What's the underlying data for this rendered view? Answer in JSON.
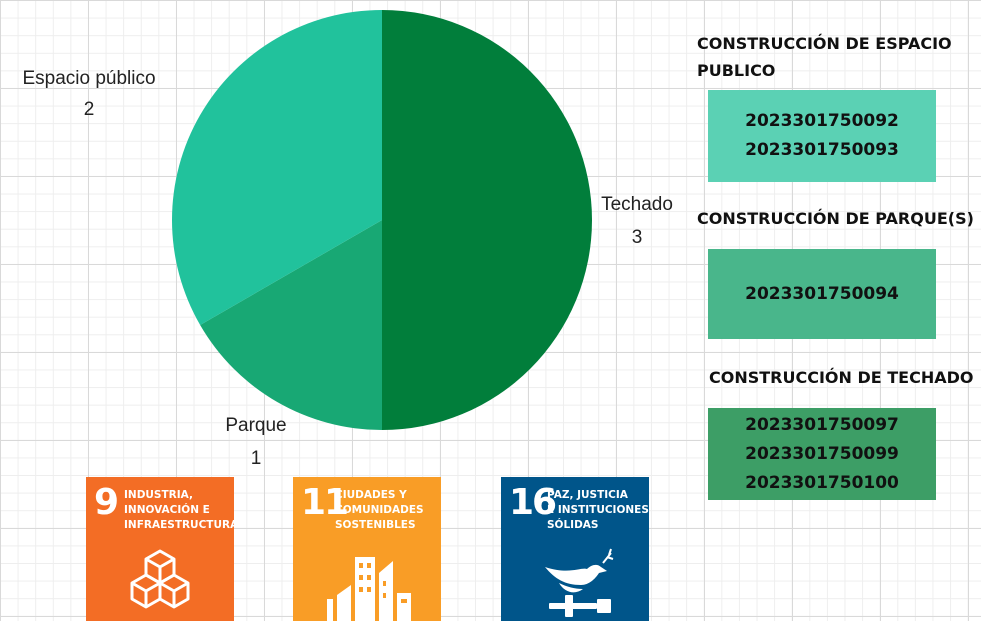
{
  "chart_data": {
    "type": "pie",
    "slices": [
      {
        "label": "Techado",
        "value": 3,
        "color": "#017e3b"
      },
      {
        "label": "Parque",
        "value": 1,
        "color": "#18a874"
      },
      {
        "label": "Espacio público",
        "value": 2,
        "color": "#21c29c"
      }
    ]
  },
  "groups": [
    {
      "title_line1": "CONSTRUCCIÓN DE ESPACIO",
      "title_line2": "PUBLICO",
      "codes": [
        "2023301750092",
        "2023301750093"
      ],
      "color": "#5bd1b4"
    },
    {
      "title_line1": "CONSTRUCCIÓN DE PARQUE(S)",
      "title_line2": "",
      "codes": [
        "2023301750094"
      ],
      "color": "#49b68b"
    },
    {
      "title_line1": "CONSTRUCCIÓN DE TECHADO",
      "title_line2": "",
      "codes": [
        "2023301750097",
        "2023301750099",
        "2023301750100"
      ],
      "color": "#3d9e66"
    }
  ],
  "sdg": [
    {
      "number": "9",
      "line1": "INDUSTRIA,",
      "line2": "INNOVACIÓN E",
      "line3": "INFRAESTRUCTURA",
      "color": "#f36d25",
      "icon": "cubes-icon"
    },
    {
      "number": "11",
      "line1": "CIUDADES Y",
      "line2": "COMUNIDADES",
      "line3": "SOSTENIBLES",
      "color": "#f99d26",
      "icon": "city-buildings-icon"
    },
    {
      "number": "16",
      "line1": "PAZ, JUSTICIA",
      "line2": "E INSTITUCIONES",
      "line3": "SÓLIDAS",
      "color": "#00558a",
      "icon": "dove-gavel-icon"
    }
  ]
}
